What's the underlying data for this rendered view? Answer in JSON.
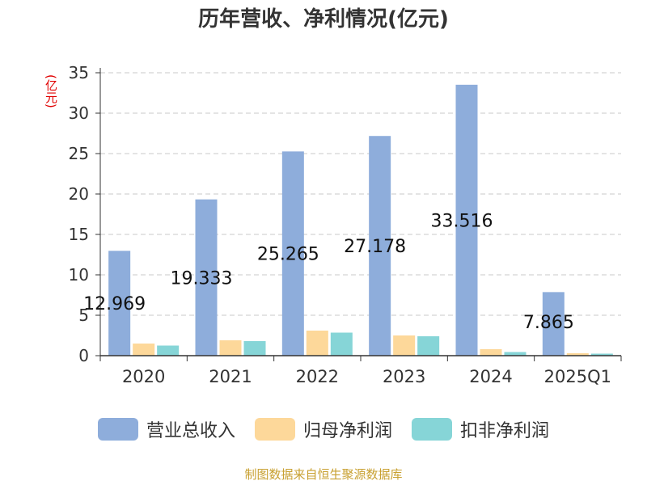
{
  "chart_data": {
    "type": "bar",
    "title": "历年营收、净利情况(亿元)",
    "unit_label": "(亿元)",
    "categories": [
      "2020",
      "2021",
      "2022",
      "2023",
      "2024",
      "2025Q1"
    ],
    "ylim": [
      0,
      35
    ],
    "yticks": [
      0,
      5,
      10,
      15,
      20,
      25,
      30,
      35
    ],
    "grid": true,
    "legend_position": "bottom",
    "series": [
      {
        "name": "营业总收入",
        "color": "#8eaddb",
        "values": [
          12.969,
          19.333,
          25.265,
          27.178,
          33.516,
          7.865
        ]
      },
      {
        "name": "归母净利润",
        "color": "#fdd89a",
        "values": [
          1.5,
          1.9,
          3.1,
          2.5,
          0.8,
          0.3
        ]
      },
      {
        "name": "扣非净利润",
        "color": "#86d5d7",
        "values": [
          1.25,
          1.8,
          2.85,
          2.4,
          0.45,
          0.25
        ]
      }
    ],
    "data_labels": [
      "12.969",
      "19.333",
      "25.265",
      "27.178",
      "33.516",
      "7.865"
    ]
  },
  "source": {
    "text": "制图数据来自恒生聚源数据库",
    "color": "#c8a030"
  }
}
